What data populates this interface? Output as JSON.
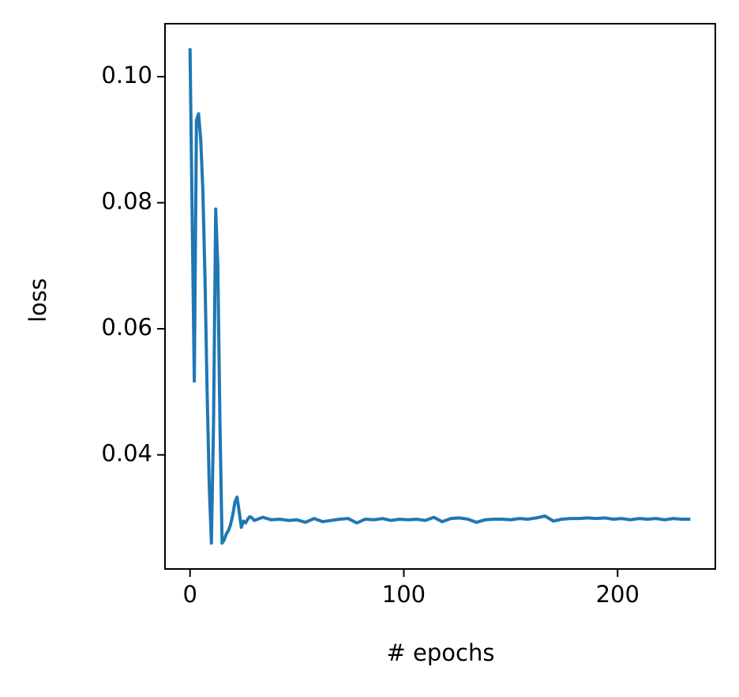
{
  "chart_data": {
    "type": "line",
    "xlabel": "# epochs",
    "ylabel": "loss",
    "x": [
      0,
      1,
      2,
      3,
      4,
      5,
      6,
      7,
      8,
      9,
      10,
      11,
      12,
      13,
      14,
      15,
      16,
      17,
      18,
      19,
      20,
      21,
      22,
      23,
      24,
      25,
      26,
      27,
      28,
      29,
      30,
      34,
      38,
      42,
      46,
      50,
      54,
      58,
      62,
      66,
      70,
      74,
      78,
      82,
      86,
      90,
      94,
      98,
      102,
      106,
      110,
      114,
      118,
      122,
      126,
      130,
      134,
      138,
      142,
      146,
      150,
      154,
      158,
      162,
      166,
      170,
      174,
      178,
      182,
      186,
      190,
      194,
      198,
      202,
      206,
      210,
      214,
      218,
      222,
      226,
      230,
      234
    ],
    "series": [
      {
        "color": "#1f77b4",
        "values": [
          0.1045,
          0.078,
          0.0517,
          0.0931,
          0.0941,
          0.09,
          0.082,
          0.068,
          0.05,
          0.035,
          0.026,
          0.045,
          0.079,
          0.07,
          0.045,
          0.026,
          0.0265,
          0.0275,
          0.028,
          0.029,
          0.0305,
          0.0325,
          0.0333,
          0.031,
          0.0285,
          0.0295,
          0.0292,
          0.0298,
          0.0302,
          0.03,
          0.0296,
          0.0301,
          0.0297,
          0.0298,
          0.0296,
          0.0297,
          0.0293,
          0.0299,
          0.0294,
          0.0296,
          0.0298,
          0.0299,
          0.0292,
          0.0298,
          0.0297,
          0.0299,
          0.0296,
          0.0298,
          0.0297,
          0.0298,
          0.0296,
          0.0301,
          0.0294,
          0.0299,
          0.03,
          0.0298,
          0.0293,
          0.0297,
          0.0298,
          0.0298,
          0.0297,
          0.0299,
          0.0298,
          0.03,
          0.0303,
          0.0295,
          0.0298,
          0.0299,
          0.0299,
          0.03,
          0.0299,
          0.03,
          0.0298,
          0.0299,
          0.0297,
          0.0299,
          0.0298,
          0.0299,
          0.0297,
          0.0299,
          0.0298,
          0.0298
        ]
      }
    ],
    "xlim": [
      -11.7,
      245.7
    ],
    "xticks": [
      0,
      100,
      200
    ],
    "ylim": [
      0.0219,
      0.1084
    ],
    "yticks": [
      0.04,
      0.06,
      0.08,
      {
        "value": 0.1,
        "label": "0.10"
      }
    ],
    "grid": false
  }
}
